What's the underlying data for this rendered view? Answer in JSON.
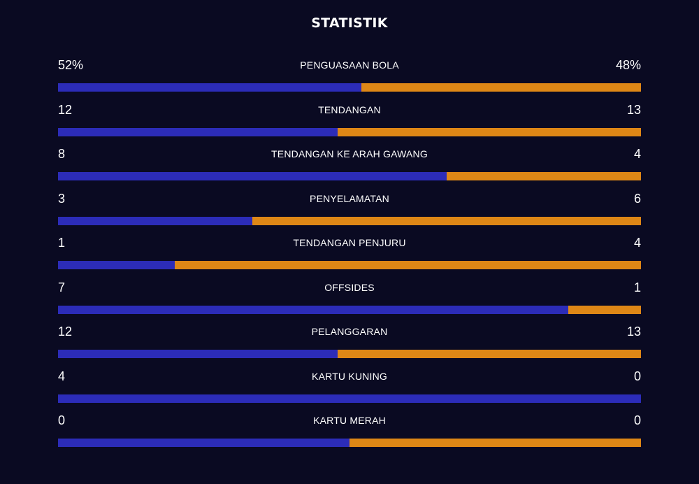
{
  "title": "STATISTIK",
  "colors": {
    "background": "#0a0a22",
    "home": "#2c2cb8",
    "away": "#de8716"
  },
  "chart_data": {
    "type": "bar",
    "stats": [
      {
        "label": "PENGUASAAN BOLA",
        "home_display": "52%",
        "away_display": "48%",
        "home": 52,
        "away": 48
      },
      {
        "label": "TENDANGAN",
        "home_display": "12",
        "away_display": "13",
        "home": 12,
        "away": 13
      },
      {
        "label": "TENDANGAN KE ARAH GAWANG",
        "home_display": "8",
        "away_display": "4",
        "home": 8,
        "away": 4
      },
      {
        "label": "PENYELAMATAN",
        "home_display": "3",
        "away_display": "6",
        "home": 3,
        "away": 6
      },
      {
        "label": "TENDANGAN PENJURU",
        "home_display": "1",
        "away_display": "4",
        "home": 1,
        "away": 4
      },
      {
        "label": "OFFSIDES",
        "home_display": "7",
        "away_display": "1",
        "home": 7,
        "away": 1
      },
      {
        "label": "PELANGGARAN",
        "home_display": "12",
        "away_display": "13",
        "home": 12,
        "away": 13
      },
      {
        "label": "KARTU KUNING",
        "home_display": "4",
        "away_display": "0",
        "home": 4,
        "away": 0
      },
      {
        "label": "KARTU MERAH",
        "home_display": "0",
        "away_display": "0",
        "home": 0,
        "away": 0
      }
    ]
  }
}
